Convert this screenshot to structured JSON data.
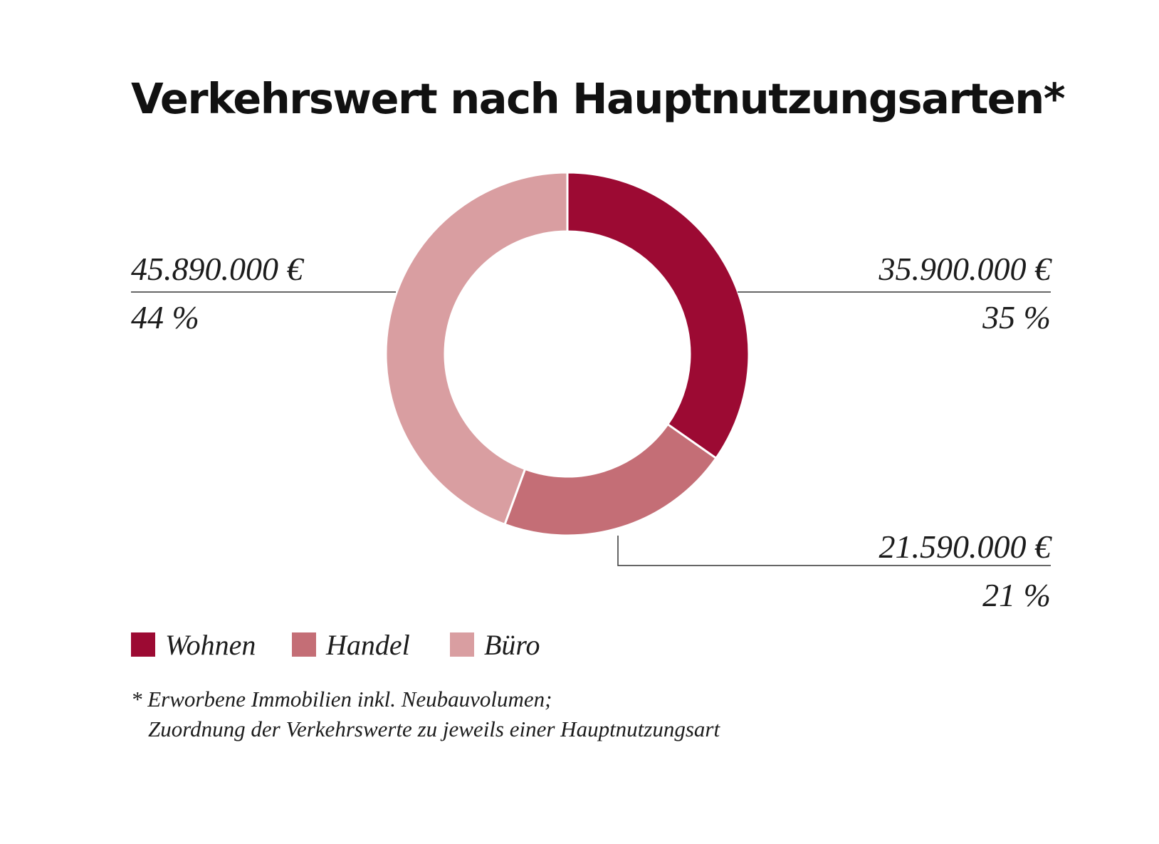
{
  "colors": {
    "wohnen": "#9c0a33",
    "handel": "#c46e76",
    "buero": "#d99ea1",
    "line": "#333333"
  },
  "chart_data": {
    "type": "pie",
    "title": "Verkehrswert nach Hauptnutzungsarten*",
    "categories": [
      "Wohnen",
      "Handel",
      "Büro"
    ],
    "values": [
      35900000,
      21590000,
      45890000
    ],
    "percent": [
      35,
      21,
      44
    ],
    "value_labels": [
      "35.900.000 €",
      "21.590.000 €",
      "45.890.000 €"
    ],
    "percent_labels": [
      "35 %",
      "21 %",
      "44 %"
    ],
    "donut": true
  },
  "legend": {
    "wohnen": "Wohnen",
    "handel": "Handel",
    "buero": "Büro"
  },
  "footnote": {
    "line1": "* Erworbene Immobilien inkl. Neubauvolumen;",
    "line2": "Zuordnung der Verkehrswerte zu jeweils einer Hauptnutzungsart"
  }
}
